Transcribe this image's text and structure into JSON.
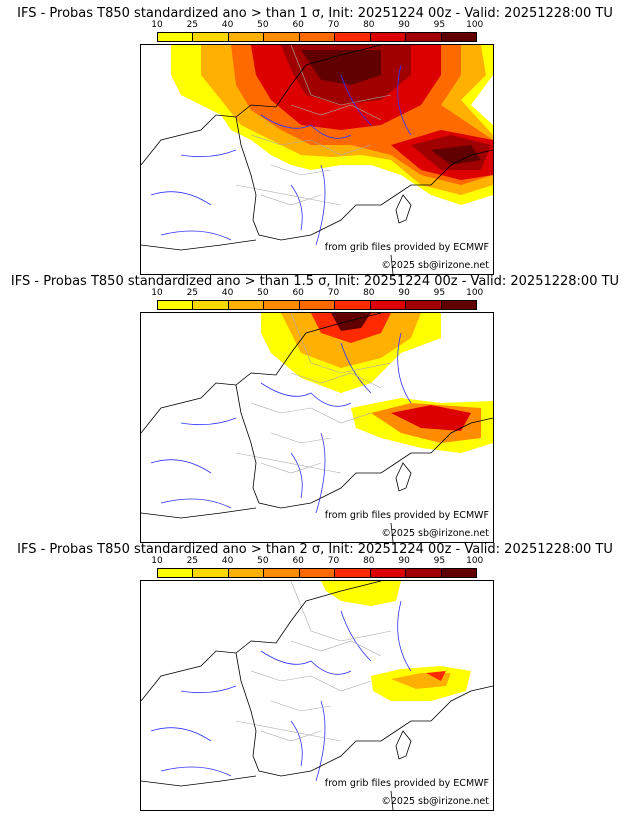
{
  "panels": [
    {
      "title": "IFS - Probas T850  standardized ano > than 1 σ, Init: 20251224 00z - Valid: 20251228:00 TU",
      "level": "1"
    },
    {
      "title": "IFS - Probas T850  standardized ano > than 1.5 σ, Init: 20251224 00z - Valid: 20251228:00 TU",
      "level": "1.5"
    },
    {
      "title": "IFS - Probas T850  standardized ano > than 2 σ, Init: 20251224 00z - Valid: 20251228:00 TU",
      "level": "2"
    }
  ],
  "colorbar": {
    "ticks": [
      "10",
      "25",
      "40",
      "50",
      "60",
      "70",
      "80",
      "90",
      "95",
      "100"
    ],
    "colors": [
      "#ffff00",
      "#ffd800",
      "#ffb000",
      "#ff8c00",
      "#ff6a00",
      "#ff2a00",
      "#dd0000",
      "#a00000",
      "#600000"
    ]
  },
  "credits": {
    "source": "from grib files provided by ECMWF",
    "copyright": "©2025 sb@irizone.net"
  }
}
